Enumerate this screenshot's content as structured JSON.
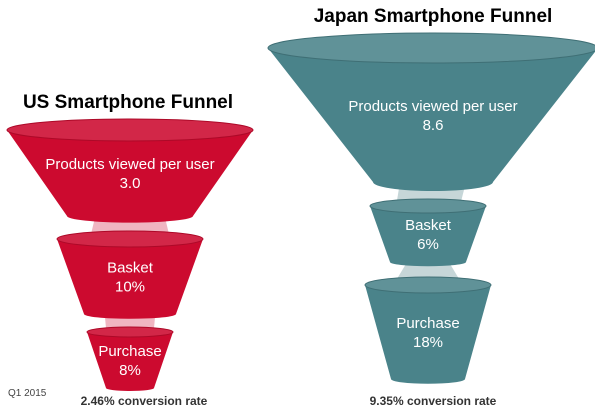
{
  "date_label": "Q1 2015",
  "colors": {
    "us_fill": "#cc0a2f",
    "us_connector": "#f0b5c1",
    "jp_fill": "#4a838a",
    "jp_connector": "#c6d6d8"
  },
  "chart_data": [
    {
      "type": "funnel",
      "title": "US Smartphone Funnel",
      "footer": "2.46% conversion rate",
      "stages": [
        {
          "label": "Products viewed per user",
          "value_text": "3.0",
          "value": 3.0
        },
        {
          "label": "Basket",
          "value_text": "10%",
          "value": 10
        },
        {
          "label": "Purchase",
          "value_text": "8%",
          "value": 8
        }
      ],
      "conversion_rate": 2.46
    },
    {
      "type": "funnel",
      "title": "Japan Smartphone Funnel",
      "footer": "9.35% conversion rate",
      "stages": [
        {
          "label": "Products viewed per user",
          "value_text": "8.6",
          "value": 8.6
        },
        {
          "label": "Basket",
          "value_text": "6%",
          "value": 6
        },
        {
          "label": "Purchase",
          "value_text": "18%",
          "value": 18
        }
      ],
      "conversion_rate": 9.35
    }
  ]
}
